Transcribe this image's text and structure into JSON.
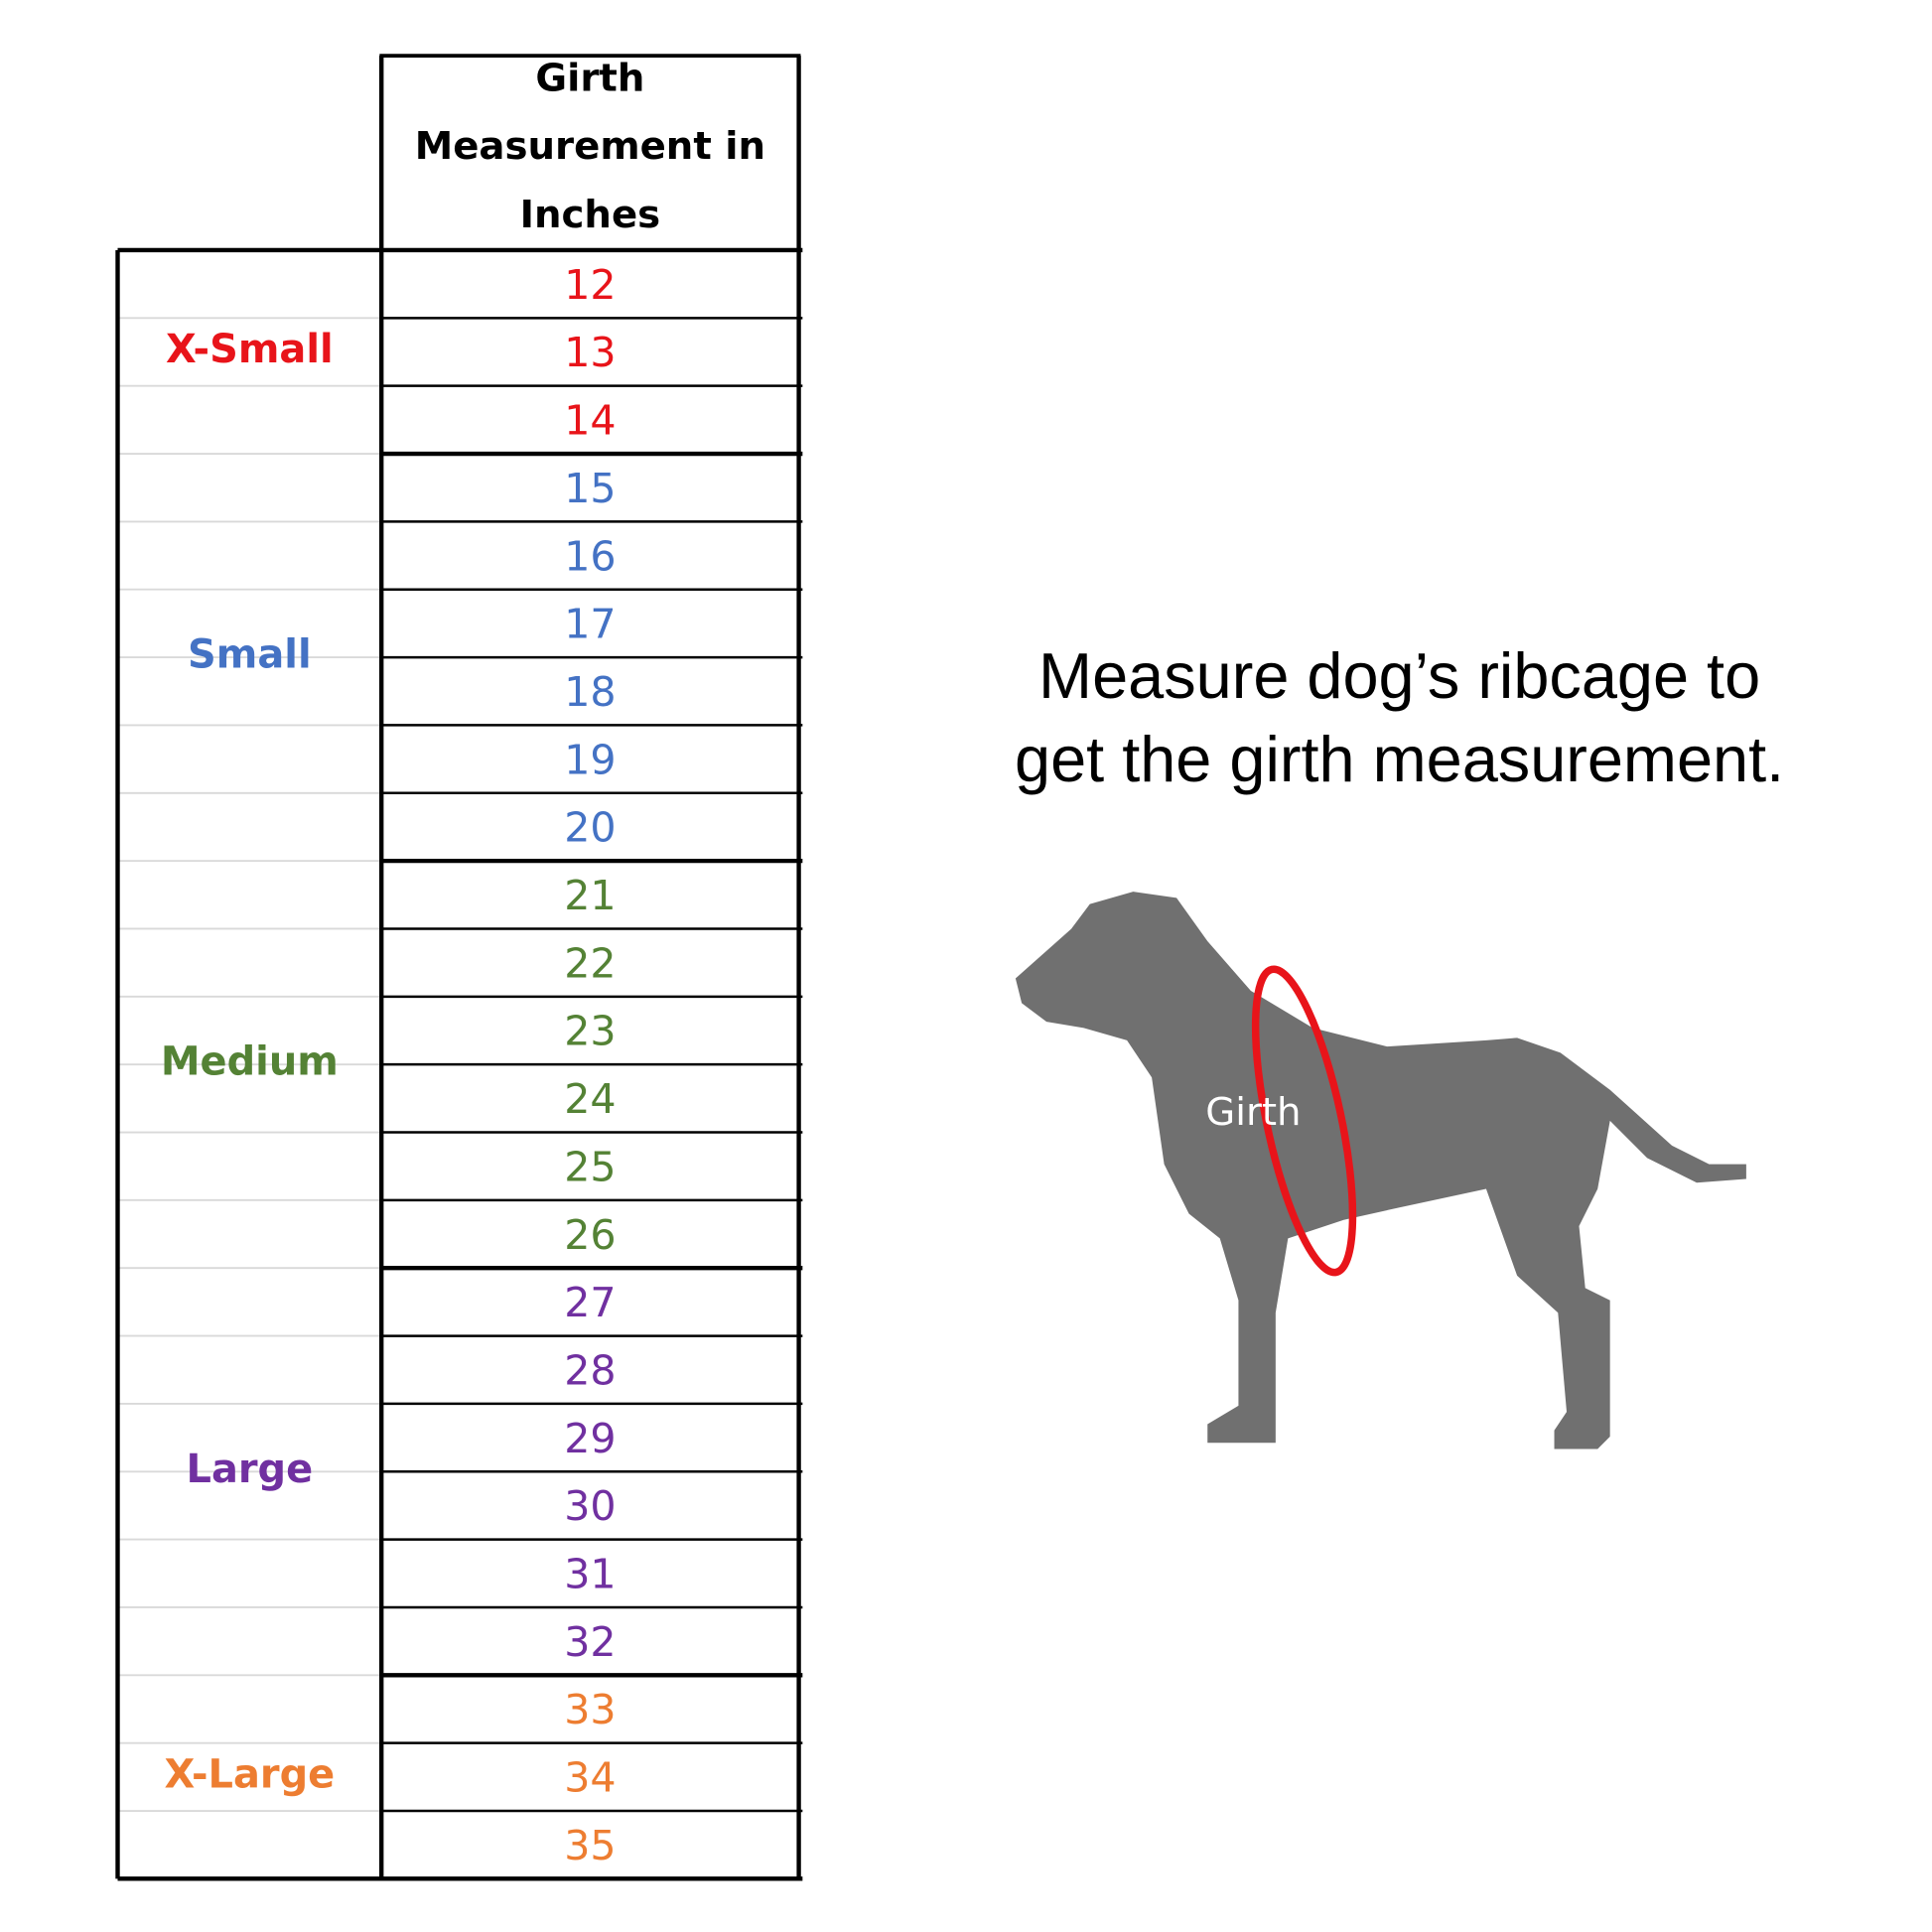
{
  "table": {
    "header": [
      "Girth",
      "Measurement in",
      "Inches"
    ],
    "groups": [
      {
        "name": "X-Small",
        "color": "#e8141a",
        "sizes": [
          "12",
          "13",
          "14"
        ]
      },
      {
        "name": "Small",
        "color": "#4472c4",
        "sizes": [
          "15",
          "16",
          "17",
          "18",
          "19",
          "20"
        ]
      },
      {
        "name": "Medium",
        "color": "#548235",
        "sizes": [
          "21",
          "22",
          "23",
          "24",
          "25",
          "26"
        ]
      },
      {
        "name": "Large",
        "color": "#7030a0",
        "sizes": [
          "27",
          "28",
          "29",
          "30",
          "31",
          "32"
        ]
      },
      {
        "name": "X-Large",
        "color": "#ed7d31",
        "sizes": [
          "33",
          "34",
          "35"
        ]
      }
    ]
  },
  "note": [
    "Measure dog’s ribcage to",
    "get the girth measurement."
  ],
  "illustration": {
    "label": "Girth"
  }
}
